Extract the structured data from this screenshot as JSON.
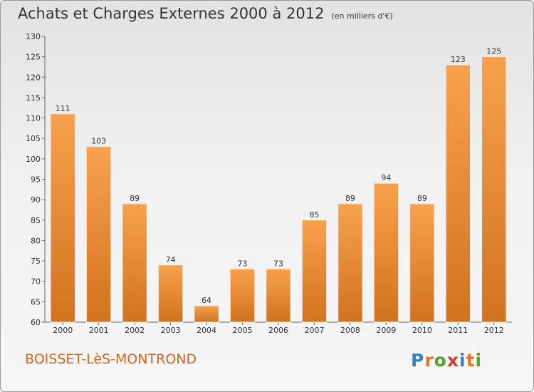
{
  "header": {
    "title": "Achats et Charges Externes 2000 à 2012",
    "unit": "(en milliers d'€)"
  },
  "footer": {
    "region": "BOISSET-LèS-MONTROND",
    "logo": "Proxiti",
    "logo_colors": [
      "#3d7fc1",
      "#e8731f",
      "#5aa02c",
      "#d63a2a",
      "#3d7fc1",
      "#e8731f",
      "#5aa02c"
    ]
  },
  "chart_data": {
    "type": "bar",
    "title": "Achats et Charges Externes 2000 à 2012",
    "subtitle": "(en milliers d'€)",
    "categories": [
      "2000",
      "2001",
      "2002",
      "2003",
      "2004",
      "2005",
      "2006",
      "2007",
      "2008",
      "2009",
      "2010",
      "2011",
      "2012"
    ],
    "values": [
      111,
      103,
      89,
      74,
      64,
      73,
      73,
      85,
      89,
      94,
      89,
      123,
      125
    ],
    "ylim": [
      60,
      130
    ],
    "yticks": [
      60,
      65,
      70,
      75,
      80,
      85,
      90,
      95,
      100,
      105,
      110,
      115,
      120,
      125,
      130
    ],
    "grid": false,
    "bar_color_top": "#f7a14d",
    "bar_color_bottom": "#d2721f",
    "xlabel": "",
    "ylabel": ""
  }
}
